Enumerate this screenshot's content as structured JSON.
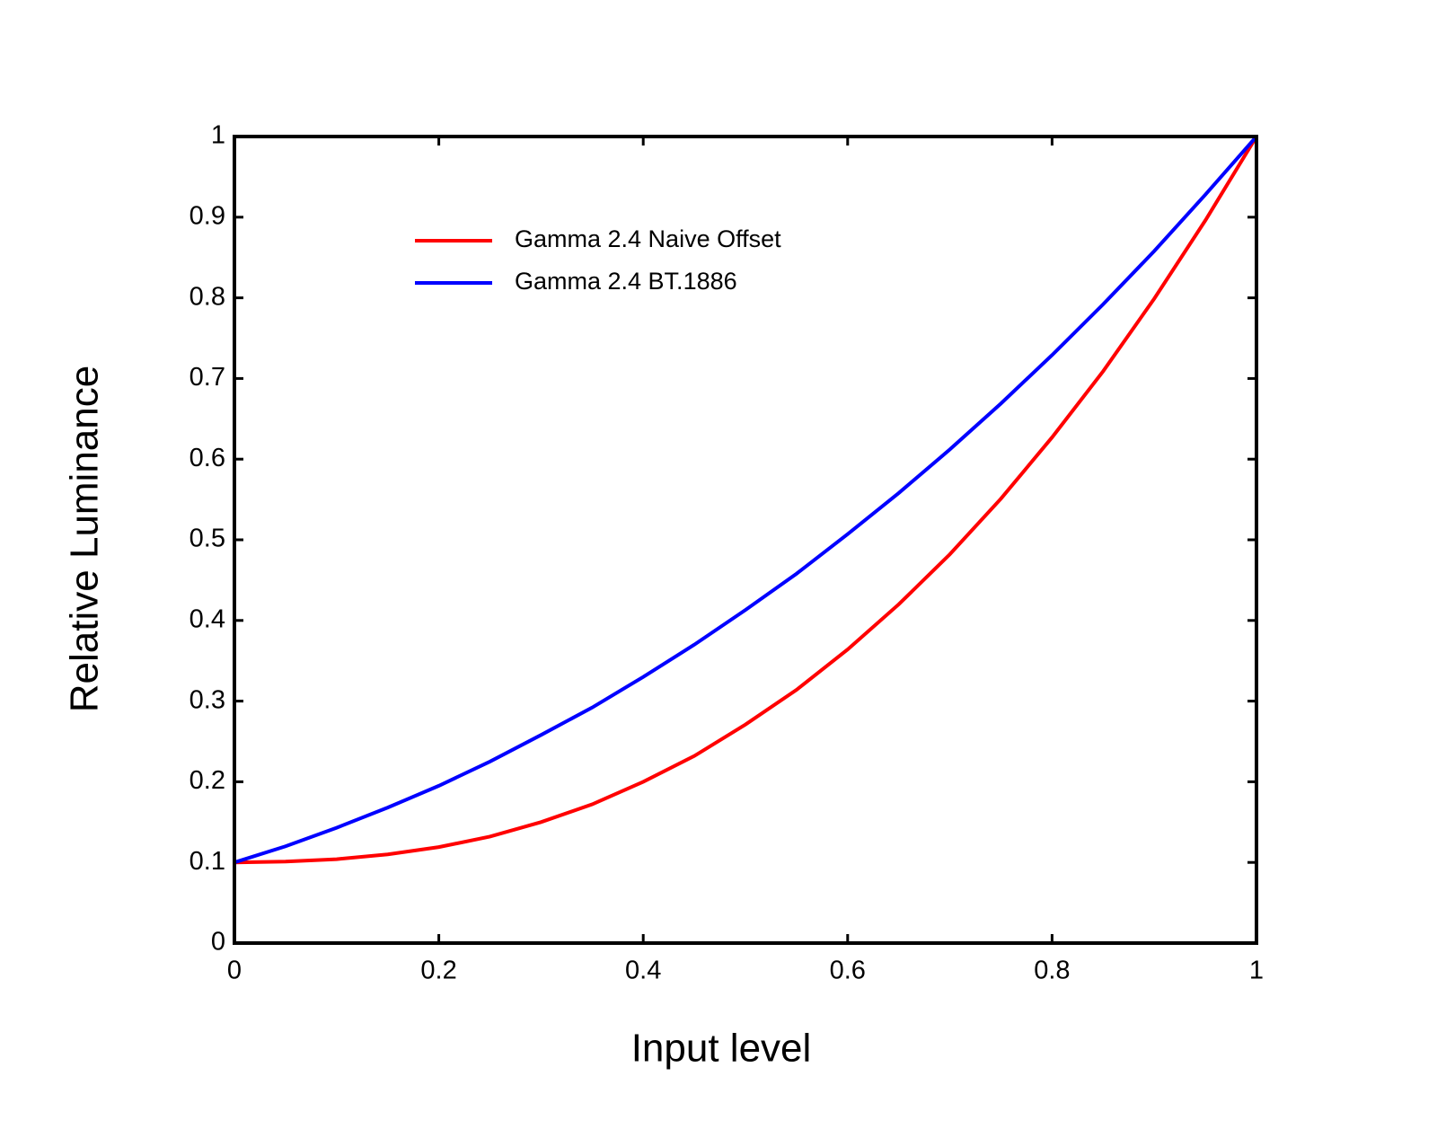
{
  "chart_data": {
    "type": "line",
    "xlabel": "Input level",
    "ylabel": "Relative Luminance",
    "x": [
      0,
      0.05,
      0.1,
      0.15,
      0.2,
      0.25,
      0.3,
      0.35,
      0.4,
      0.45,
      0.5,
      0.55,
      0.6,
      0.65,
      0.7,
      0.75,
      0.8,
      0.85,
      0.9,
      0.95,
      1
    ],
    "series": [
      {
        "name": "Gamma 2.4 Naive Offset",
        "color": "#ff0000",
        "values": [
          0.1,
          0.101,
          0.104,
          0.11,
          0.119,
          0.132,
          0.15,
          0.172,
          0.2,
          0.232,
          0.271,
          0.314,
          0.364,
          0.42,
          0.482,
          0.551,
          0.627,
          0.709,
          0.799,
          0.896,
          1
        ]
      },
      {
        "name": "Gamma 2.4 BT.1886",
        "color": "#0000ff",
        "values": [
          0.1,
          0.12,
          0.143,
          0.168,
          0.195,
          0.225,
          0.258,
          0.292,
          0.33,
          0.37,
          0.413,
          0.458,
          0.507,
          0.558,
          0.612,
          0.669,
          0.729,
          0.792,
          0.858,
          0.928,
          1
        ]
      }
    ],
    "xlim": [
      0,
      1
    ],
    "ylim": [
      0,
      1
    ],
    "xticks": [
      0,
      0.2,
      0.4,
      0.6,
      0.8,
      1
    ],
    "yticks": [
      0,
      0.1,
      0.2,
      0.3,
      0.4,
      0.5,
      0.6,
      0.7,
      0.8,
      0.9,
      1
    ],
    "legend": "upper left",
    "grid": false
  }
}
